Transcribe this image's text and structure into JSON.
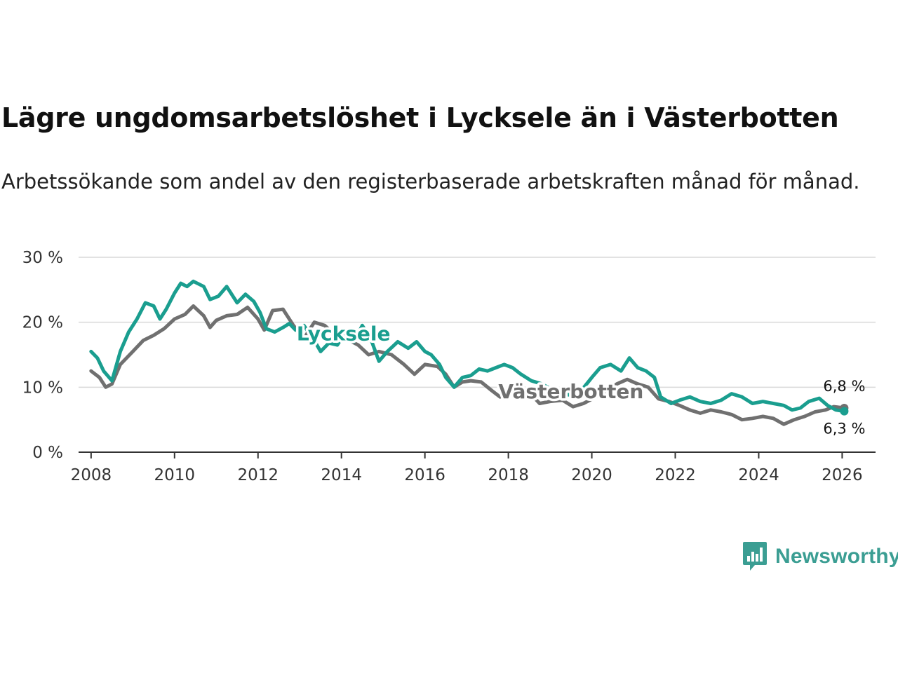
{
  "header": {
    "title": "Lägre ungdomsarbetslöshet i Lycksele än i Västerbotten",
    "subtitle": "Arbetssökande som andel av den registerbaserade arbetskraften månad för månad."
  },
  "brand": {
    "name": "Newsworthy",
    "icon": "newsworthy-logo-icon",
    "color": "#3b9e93"
  },
  "chart_data": {
    "type": "line",
    "title": "Lägre ungdomsarbetslöshet i Lycksele än i Västerbotten",
    "subtitle": "Arbetssökande som andel av den registerbaserade arbetskraften månad för månad.",
    "xlabel": "",
    "ylabel": "",
    "xlim": [
      2007.7,
      2026.8
    ],
    "ylim": [
      0,
      30
    ],
    "grid": true,
    "x_ticks": [
      2008,
      2010,
      2012,
      2014,
      2016,
      2018,
      2020,
      2022,
      2024,
      2026
    ],
    "x_tick_labels": [
      "2008",
      "2010",
      "2012",
      "2014",
      "2016",
      "2018",
      "2020",
      "2022",
      "2024",
      "2026"
    ],
    "y_ticks": [
      0,
      10,
      20,
      30
    ],
    "y_tick_labels": [
      "0 %",
      "10 %",
      "20 %",
      "30 %"
    ],
    "series": [
      {
        "name": "Västerbotten",
        "color": "#707070",
        "points": [
          [
            2008.0,
            12.5
          ],
          [
            2008.2,
            11.5
          ],
          [
            2008.35,
            10.0
          ],
          [
            2008.5,
            10.5
          ],
          [
            2008.7,
            13.5
          ],
          [
            2009.0,
            15.5
          ],
          [
            2009.25,
            17.2
          ],
          [
            2009.5,
            18.0
          ],
          [
            2009.75,
            19.0
          ],
          [
            2010.0,
            20.5
          ],
          [
            2010.25,
            21.2
          ],
          [
            2010.45,
            22.5
          ],
          [
            2010.7,
            21.0
          ],
          [
            2010.85,
            19.2
          ],
          [
            2011.0,
            20.3
          ],
          [
            2011.25,
            21.0
          ],
          [
            2011.5,
            21.2
          ],
          [
            2011.75,
            22.3
          ],
          [
            2012.0,
            20.5
          ],
          [
            2012.15,
            18.8
          ],
          [
            2012.35,
            21.8
          ],
          [
            2012.6,
            22.0
          ],
          [
            2012.85,
            19.5
          ],
          [
            2013.1,
            17.5
          ],
          [
            2013.35,
            20.0
          ],
          [
            2013.6,
            19.5
          ],
          [
            2013.85,
            18.0
          ],
          [
            2014.1,
            17.5
          ],
          [
            2014.4,
            16.5
          ],
          [
            2014.65,
            15.0
          ],
          [
            2014.9,
            15.5
          ],
          [
            2015.2,
            15.0
          ],
          [
            2015.5,
            13.5
          ],
          [
            2015.75,
            12.0
          ],
          [
            2016.0,
            13.5
          ],
          [
            2016.3,
            13.2
          ],
          [
            2016.5,
            12.0
          ],
          [
            2016.7,
            10.0
          ],
          [
            2016.9,
            10.8
          ],
          [
            2017.1,
            11.0
          ],
          [
            2017.35,
            10.8
          ],
          [
            2017.6,
            9.5
          ],
          [
            2017.8,
            8.5
          ],
          [
            2018.0,
            9.5
          ],
          [
            2018.25,
            9.8
          ],
          [
            2018.5,
            9.2
          ],
          [
            2018.75,
            7.5
          ],
          [
            2019.0,
            7.8
          ],
          [
            2019.3,
            8.0
          ],
          [
            2019.55,
            7.0
          ],
          [
            2019.8,
            7.5
          ],
          [
            2020.1,
            8.5
          ],
          [
            2020.35,
            9.5
          ],
          [
            2020.6,
            10.5
          ],
          [
            2020.85,
            11.2
          ],
          [
            2021.1,
            10.5
          ],
          [
            2021.35,
            10.0
          ],
          [
            2021.6,
            8.2
          ],
          [
            2021.85,
            7.8
          ],
          [
            2022.1,
            7.2
          ],
          [
            2022.35,
            6.5
          ],
          [
            2022.6,
            6.0
          ],
          [
            2022.85,
            6.5
          ],
          [
            2023.1,
            6.2
          ],
          [
            2023.35,
            5.8
          ],
          [
            2023.6,
            5.0
          ],
          [
            2023.85,
            5.2
          ],
          [
            2024.1,
            5.5
          ],
          [
            2024.35,
            5.2
          ],
          [
            2024.6,
            4.3
          ],
          [
            2024.85,
            5.0
          ],
          [
            2025.1,
            5.5
          ],
          [
            2025.35,
            6.2
          ],
          [
            2025.6,
            6.5
          ],
          [
            2025.8,
            7.0
          ],
          [
            2026.05,
            6.8
          ]
        ],
        "last_value_label": "6,8 %"
      },
      {
        "name": "Lycksele",
        "color": "#1a9e8f",
        "points": [
          [
            2008.0,
            15.5
          ],
          [
            2008.15,
            14.5
          ],
          [
            2008.3,
            12.5
          ],
          [
            2008.5,
            11.0
          ],
          [
            2008.7,
            15.5
          ],
          [
            2008.9,
            18.5
          ],
          [
            2009.1,
            20.5
          ],
          [
            2009.3,
            23.0
          ],
          [
            2009.5,
            22.5
          ],
          [
            2009.65,
            20.5
          ],
          [
            2009.8,
            22.0
          ],
          [
            2010.0,
            24.5
          ],
          [
            2010.15,
            26.0
          ],
          [
            2010.3,
            25.5
          ],
          [
            2010.45,
            26.3
          ],
          [
            2010.7,
            25.5
          ],
          [
            2010.85,
            23.5
          ],
          [
            2011.05,
            24.0
          ],
          [
            2011.25,
            25.5
          ],
          [
            2011.5,
            23.0
          ],
          [
            2011.7,
            24.3
          ],
          [
            2011.9,
            23.2
          ],
          [
            2012.05,
            21.5
          ],
          [
            2012.2,
            19.0
          ],
          [
            2012.4,
            18.5
          ],
          [
            2012.6,
            19.2
          ],
          [
            2012.75,
            19.8
          ],
          [
            2012.9,
            18.8
          ],
          [
            2013.1,
            19.5
          ],
          [
            2013.35,
            17.2
          ],
          [
            2013.5,
            15.5
          ],
          [
            2013.7,
            16.8
          ],
          [
            2013.9,
            16.5
          ],
          [
            2014.1,
            18.5
          ],
          [
            2014.3,
            17.0
          ],
          [
            2014.5,
            19.5
          ],
          [
            2014.7,
            17.5
          ],
          [
            2014.9,
            14.0
          ],
          [
            2015.1,
            15.5
          ],
          [
            2015.35,
            17.0
          ],
          [
            2015.6,
            16.0
          ],
          [
            2015.8,
            17.0
          ],
          [
            2016.0,
            15.5
          ],
          [
            2016.15,
            15.0
          ],
          [
            2016.35,
            13.5
          ],
          [
            2016.5,
            11.5
          ],
          [
            2016.7,
            10.0
          ],
          [
            2016.9,
            11.5
          ],
          [
            2017.1,
            11.8
          ],
          [
            2017.3,
            12.8
          ],
          [
            2017.5,
            12.5
          ],
          [
            2017.7,
            13.0
          ],
          [
            2017.9,
            13.5
          ],
          [
            2018.1,
            13.0
          ],
          [
            2018.3,
            12.0
          ],
          [
            2018.55,
            11.0
          ],
          [
            2018.8,
            10.5
          ],
          [
            2019.0,
            9.8
          ],
          [
            2019.2,
            9.0
          ],
          [
            2019.5,
            8.8
          ],
          [
            2019.75,
            9.5
          ],
          [
            2020.0,
            11.5
          ],
          [
            2020.2,
            13.0
          ],
          [
            2020.45,
            13.5
          ],
          [
            2020.7,
            12.5
          ],
          [
            2020.9,
            14.5
          ],
          [
            2021.1,
            13.0
          ],
          [
            2021.3,
            12.5
          ],
          [
            2021.5,
            11.5
          ],
          [
            2021.65,
            8.5
          ],
          [
            2021.9,
            7.5
          ],
          [
            2022.1,
            8.0
          ],
          [
            2022.35,
            8.5
          ],
          [
            2022.6,
            7.8
          ],
          [
            2022.85,
            7.5
          ],
          [
            2023.1,
            8.0
          ],
          [
            2023.35,
            9.0
          ],
          [
            2023.6,
            8.5
          ],
          [
            2023.85,
            7.5
          ],
          [
            2024.1,
            7.8
          ],
          [
            2024.35,
            7.5
          ],
          [
            2024.6,
            7.2
          ],
          [
            2024.8,
            6.5
          ],
          [
            2025.0,
            6.8
          ],
          [
            2025.2,
            7.8
          ],
          [
            2025.45,
            8.3
          ],
          [
            2025.65,
            7.2
          ],
          [
            2025.85,
            6.5
          ],
          [
            2026.05,
            6.3
          ]
        ],
        "last_value_label": "6,3 %"
      }
    ]
  }
}
